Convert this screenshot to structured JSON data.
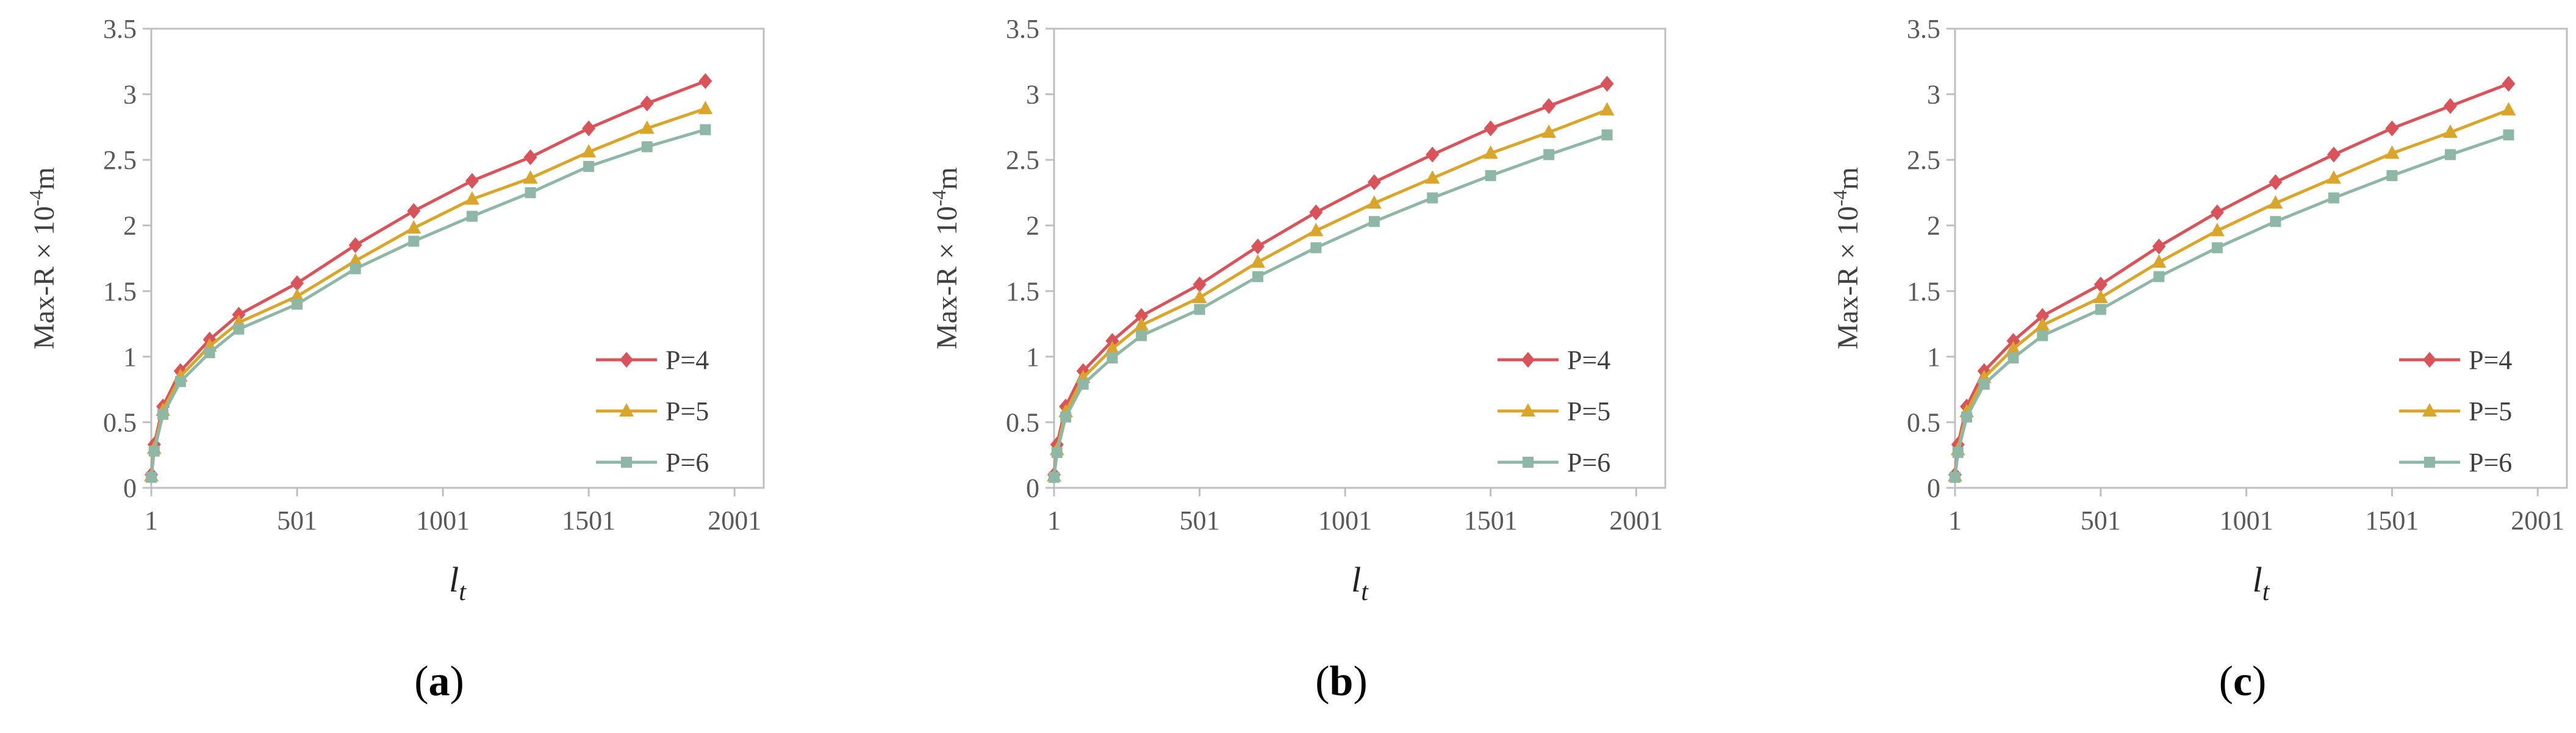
{
  "chart_data": [
    {
      "type": "line",
      "panel_label": "a",
      "ylabel": {
        "main": "Max-R × 10",
        "exp": "-4",
        "unit": "m"
      },
      "xlabel": {
        "base": "l",
        "sub": "t"
      },
      "xlim": [
        1,
        2101
      ],
      "ylim": [
        0,
        3.5
      ],
      "xticks": [
        1,
        501,
        1001,
        1501,
        2001
      ],
      "yticks": [
        0,
        0.5,
        1,
        1.5,
        2,
        2.5,
        3,
        3.5
      ],
      "ytick_labels": [
        "0",
        "0.5",
        "1",
        "1.5",
        "2",
        "2.5",
        "3",
        "3.5"
      ],
      "legend_position": "lower-right",
      "series": [
        {
          "name": "P=4",
          "color": "#d9545a",
          "marker": "diamond",
          "x": [
            1,
            11,
            41,
            101,
            201,
            301,
            501,
            701,
            901,
            1101,
            1301,
            1501,
            1701,
            1901
          ],
          "y": [
            0.1,
            0.33,
            0.62,
            0.89,
            1.13,
            1.32,
            1.56,
            1.85,
            2.11,
            2.34,
            2.52,
            2.74,
            2.93,
            3.1
          ]
        },
        {
          "name": "P=5",
          "color": "#d9a62b",
          "marker": "triangle",
          "x": [
            1,
            11,
            41,
            101,
            201,
            301,
            501,
            701,
            901,
            1101,
            1301,
            1501,
            1701,
            1901
          ],
          "y": [
            0.09,
            0.3,
            0.59,
            0.85,
            1.08,
            1.26,
            1.46,
            1.73,
            1.98,
            2.2,
            2.36,
            2.56,
            2.74,
            2.89
          ]
        },
        {
          "name": "P=6",
          "color": "#8fb7a6",
          "marker": "square",
          "x": [
            1,
            11,
            41,
            101,
            201,
            301,
            501,
            701,
            901,
            1101,
            1301,
            1501,
            1701,
            1901
          ],
          "y": [
            0.08,
            0.28,
            0.56,
            0.81,
            1.03,
            1.21,
            1.4,
            1.67,
            1.88,
            2.07,
            2.25,
            2.45,
            2.6,
            2.73
          ]
        }
      ]
    },
    {
      "type": "line",
      "panel_label": "b",
      "ylabel": {
        "main": "Max-R × 10",
        "exp": "-4",
        "unit": "m"
      },
      "xlabel": {
        "base": "l",
        "sub": "t"
      },
      "xlim": [
        1,
        2101
      ],
      "ylim": [
        0,
        3.5
      ],
      "xticks": [
        1,
        501,
        1001,
        1501,
        2001
      ],
      "yticks": [
        0,
        0.5,
        1,
        1.5,
        2,
        2.5,
        3,
        3.5
      ],
      "ytick_labels": [
        "0",
        "0.5",
        "1",
        "1.5",
        "2",
        "2.5",
        "3",
        "3.5"
      ],
      "legend_position": "lower-right",
      "series": [
        {
          "name": "P=4",
          "color": "#d9545a",
          "marker": "diamond",
          "x": [
            1,
            11,
            41,
            101,
            201,
            301,
            501,
            701,
            901,
            1101,
            1301,
            1501,
            1701,
            1901
          ],
          "y": [
            0.1,
            0.33,
            0.62,
            0.89,
            1.12,
            1.31,
            1.55,
            1.84,
            2.1,
            2.33,
            2.54,
            2.74,
            2.91,
            3.08
          ]
        },
        {
          "name": "P=5",
          "color": "#d9a62b",
          "marker": "triangle",
          "x": [
            1,
            11,
            41,
            101,
            201,
            301,
            501,
            701,
            901,
            1101,
            1301,
            1501,
            1701,
            1901
          ],
          "y": [
            0.09,
            0.29,
            0.58,
            0.84,
            1.06,
            1.24,
            1.45,
            1.72,
            1.96,
            2.17,
            2.36,
            2.55,
            2.71,
            2.88
          ]
        },
        {
          "name": "P=6",
          "color": "#8fb7a6",
          "marker": "square",
          "x": [
            1,
            11,
            41,
            101,
            201,
            301,
            501,
            701,
            901,
            1101,
            1301,
            1501,
            1701,
            1901
          ],
          "y": [
            0.08,
            0.27,
            0.54,
            0.79,
            0.99,
            1.16,
            1.36,
            1.61,
            1.83,
            2.03,
            2.21,
            2.38,
            2.54,
            2.69
          ]
        }
      ]
    },
    {
      "type": "line",
      "panel_label": "c",
      "ylabel": {
        "main": "Max-R × 10",
        "exp": "-4",
        "unit": "m"
      },
      "xlabel": {
        "base": "l",
        "sub": "t"
      },
      "xlim": [
        1,
        2101
      ],
      "ylim": [
        0,
        3.5
      ],
      "xticks": [
        1,
        501,
        1001,
        1501,
        2001
      ],
      "yticks": [
        0,
        0.5,
        1,
        1.5,
        2,
        2.5,
        3,
        3.5
      ],
      "ytick_labels": [
        "0",
        "0.5",
        "1",
        "1.5",
        "2",
        "2.5",
        "3",
        "3.5"
      ],
      "legend_position": "lower-right",
      "series": [
        {
          "name": "P=4",
          "color": "#d9545a",
          "marker": "diamond",
          "x": [
            1,
            11,
            41,
            101,
            201,
            301,
            501,
            701,
            901,
            1101,
            1301,
            1501,
            1701,
            1901
          ],
          "y": [
            0.1,
            0.33,
            0.62,
            0.89,
            1.12,
            1.31,
            1.55,
            1.84,
            2.1,
            2.33,
            2.54,
            2.74,
            2.91,
            3.08
          ]
        },
        {
          "name": "P=5",
          "color": "#d9a62b",
          "marker": "triangle",
          "x": [
            1,
            11,
            41,
            101,
            201,
            301,
            501,
            701,
            901,
            1101,
            1301,
            1501,
            1701,
            1901
          ],
          "y": [
            0.09,
            0.29,
            0.58,
            0.84,
            1.06,
            1.24,
            1.45,
            1.72,
            1.96,
            2.17,
            2.36,
            2.55,
            2.71,
            2.88
          ]
        },
        {
          "name": "P=6",
          "color": "#8fb7a6",
          "marker": "square",
          "x": [
            1,
            11,
            41,
            101,
            201,
            301,
            501,
            701,
            901,
            1101,
            1301,
            1501,
            1701,
            1901
          ],
          "y": [
            0.08,
            0.27,
            0.54,
            0.79,
            0.99,
            1.16,
            1.36,
            1.61,
            1.83,
            2.03,
            2.21,
            2.38,
            2.54,
            2.69
          ]
        }
      ]
    }
  ]
}
